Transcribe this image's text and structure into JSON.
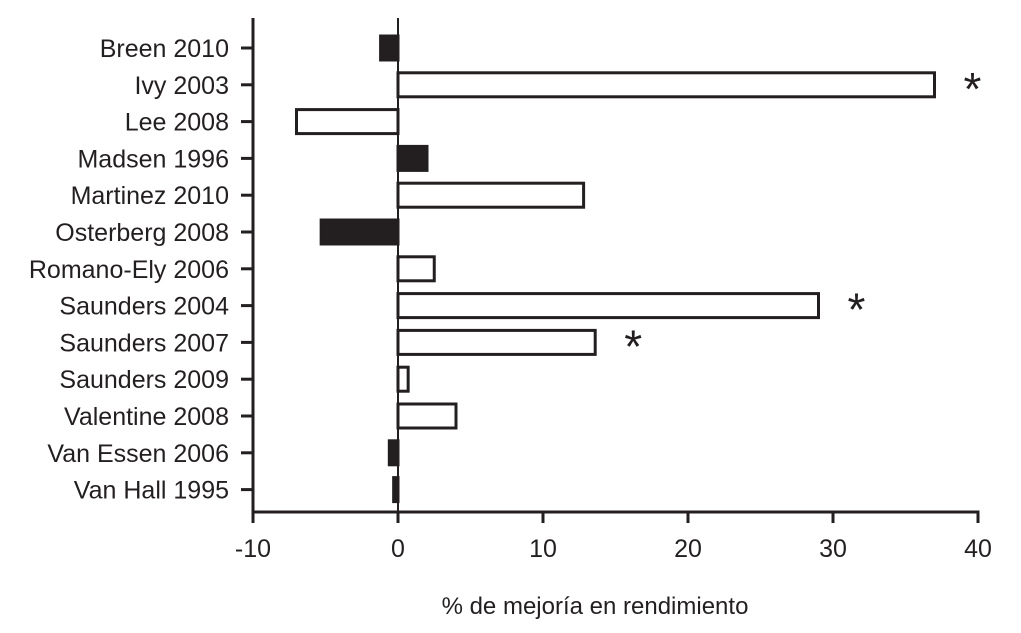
{
  "chart_data": {
    "type": "bar",
    "orientation": "horizontal",
    "title": "",
    "xlabel": "% de mejoría en rendimiento",
    "ylabel": "",
    "xlim": [
      -10,
      40
    ],
    "xticks": [
      -10,
      0,
      10,
      20,
      30,
      40
    ],
    "grid": false,
    "categories": [
      "Breen 2010",
      "Ivy 2003",
      "Lee 2008",
      "Madsen 1996",
      "Martinez 2010",
      "Osterberg 2008",
      "Romano-Ely 2006",
      "Saunders 2004",
      "Saunders 2007",
      "Saunders 2009",
      "Valentine 2008",
      "Van Essen 2006",
      "Van Hall 1995"
    ],
    "values": [
      -1.2,
      37,
      -7,
      2,
      12.8,
      -5.3,
      2.5,
      29,
      13.6,
      0.7,
      4,
      -0.6,
      -0.3
    ],
    "fill": [
      "filled",
      "open",
      "open",
      "filled",
      "open",
      "filled",
      "open",
      "open",
      "open",
      "open",
      "open",
      "filled",
      "filled"
    ],
    "significant": [
      false,
      true,
      false,
      false,
      false,
      false,
      false,
      true,
      true,
      false,
      false,
      false,
      false
    ],
    "significance_marker": "*",
    "colors": {
      "ink": "#231f20",
      "open_fill": "#ffffff",
      "filled_fill": "#231f20"
    }
  }
}
